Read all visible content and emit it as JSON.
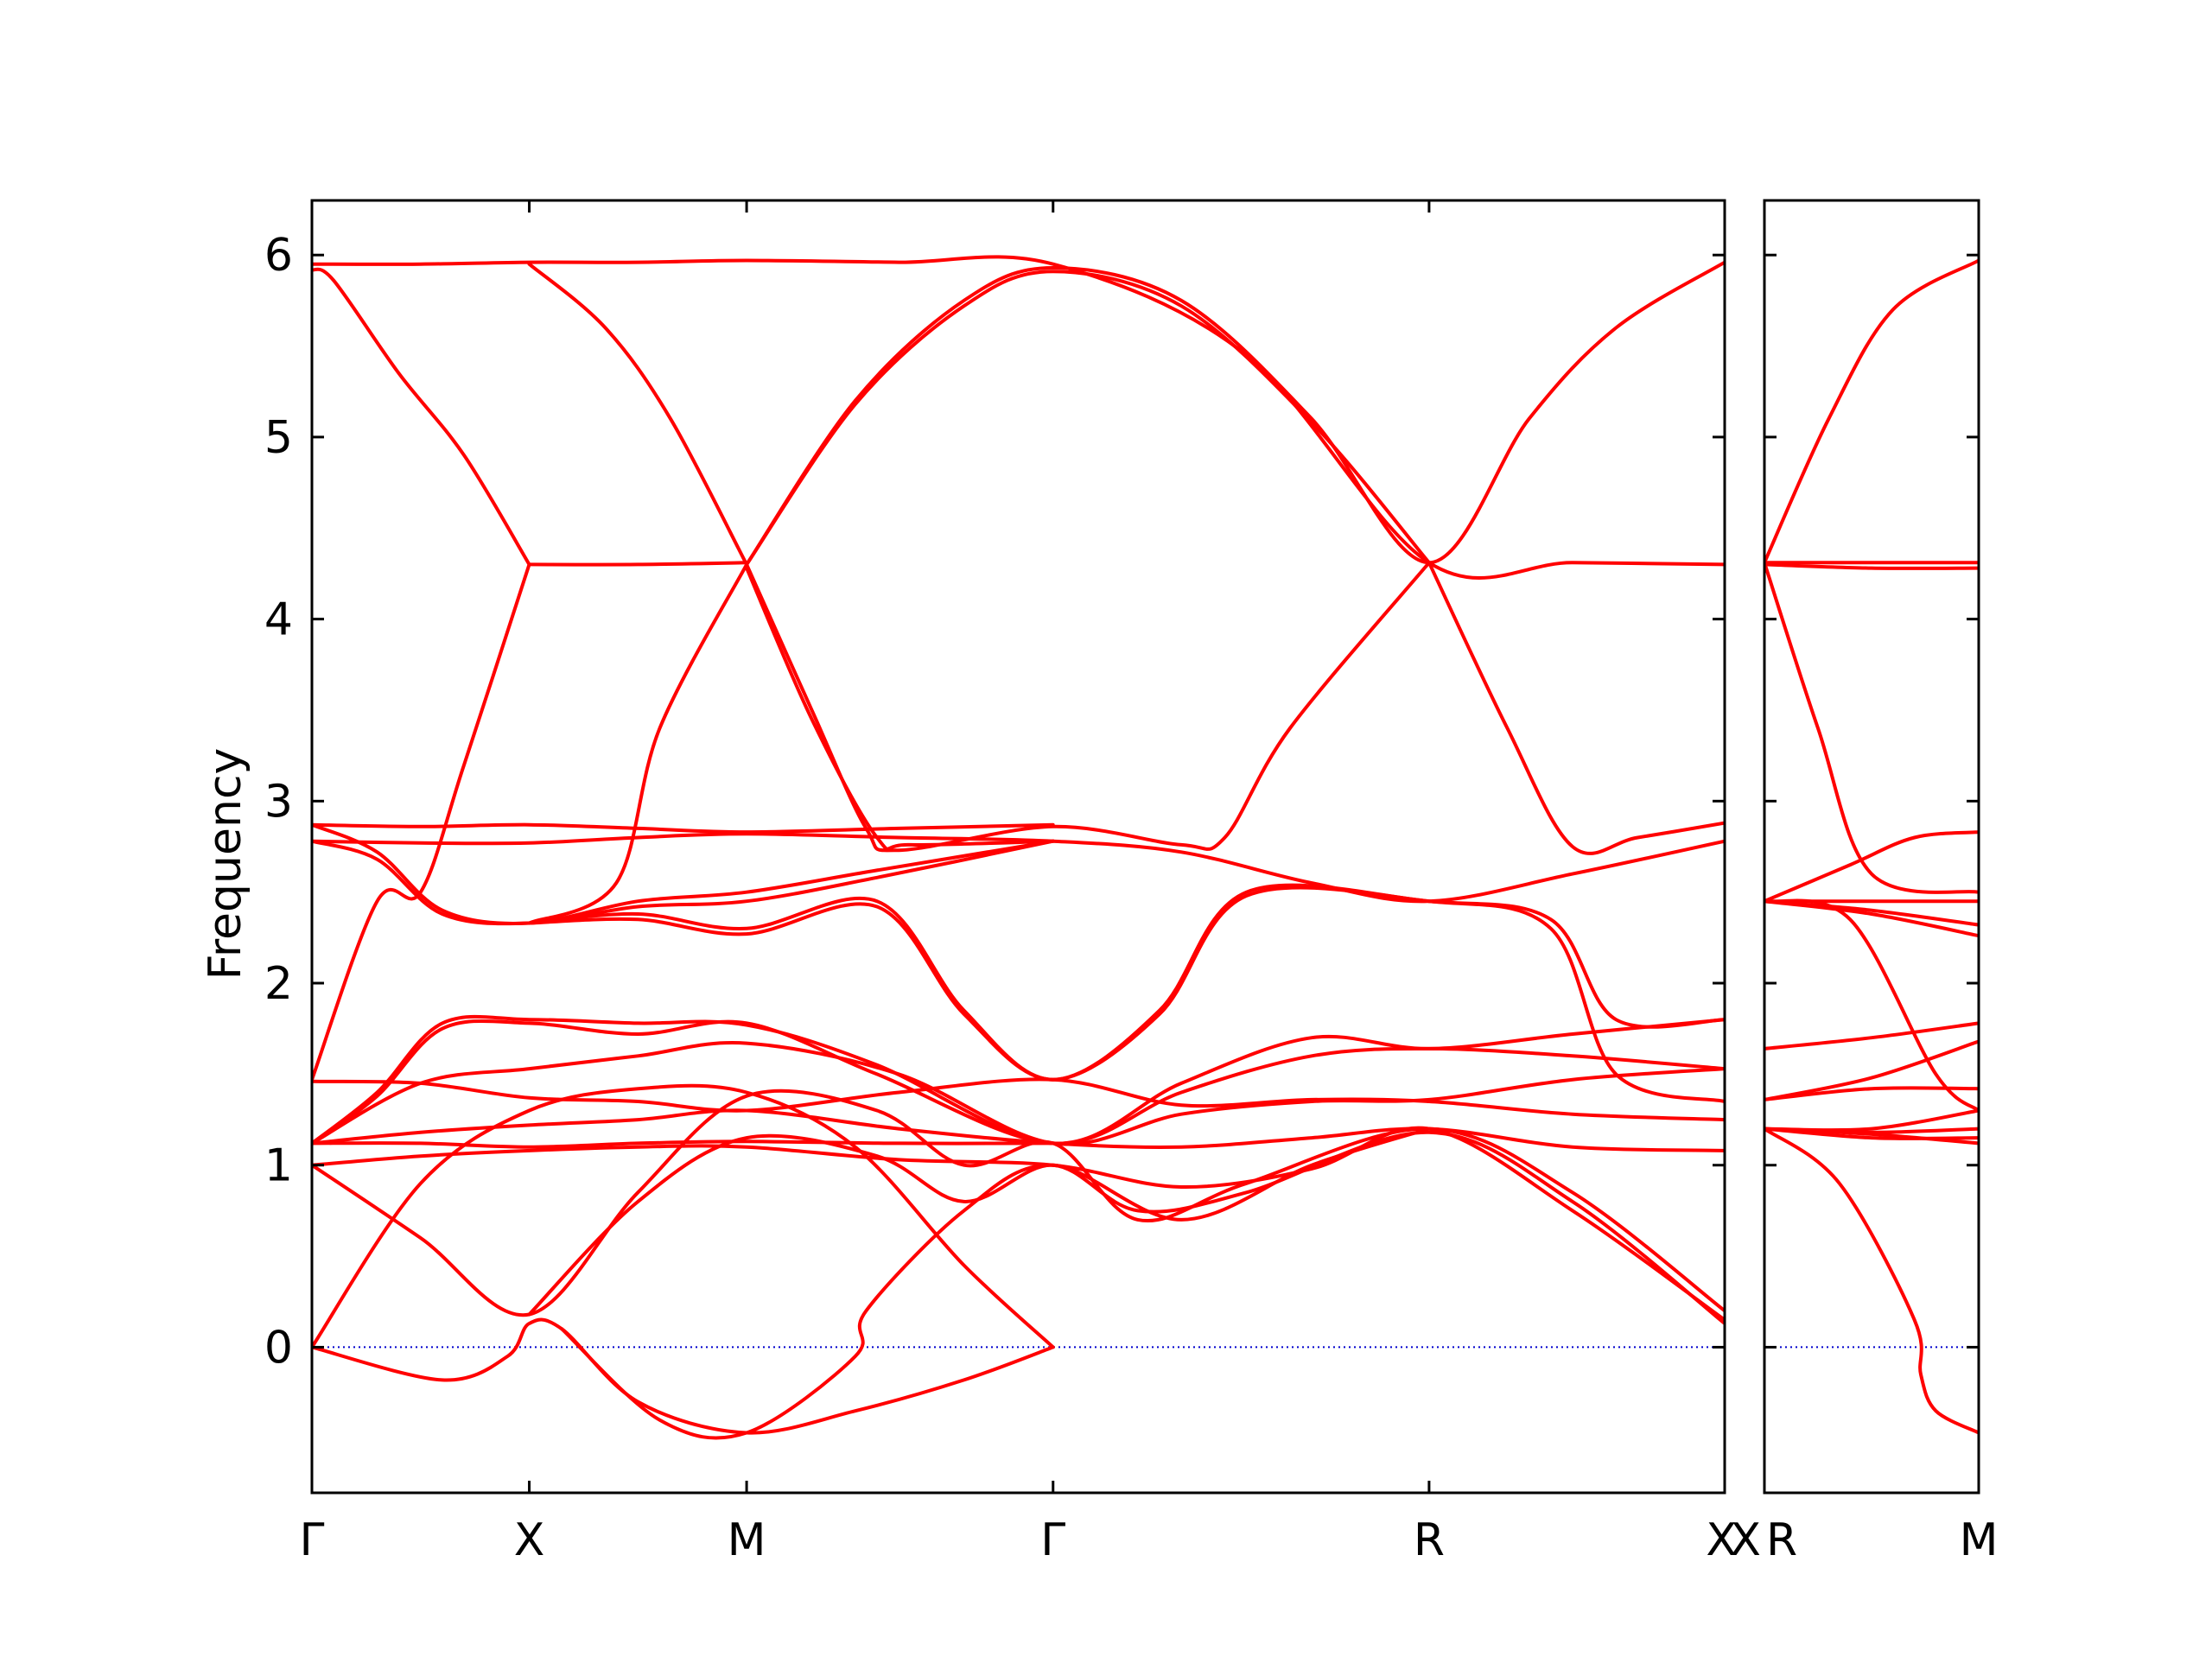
{
  "chart_data": {
    "type": "line",
    "ylabel": "Frequency",
    "ylim": [
      -0.8,
      6.3
    ],
    "yticks": [
      0,
      1,
      2,
      3,
      4,
      5,
      6
    ],
    "colors": {
      "bands": "#ff0000",
      "zero_line": "#0000cc",
      "frame": "#000000"
    },
    "grid": false,
    "legend": "none",
    "panels": [
      {
        "name": "main",
        "xlim": [
          0,
          6.5
        ],
        "kpoints": [
          {
            "label": "Γ",
            "x": 0
          },
          {
            "label": "X",
            "x": 1
          },
          {
            "label": "M",
            "x": 2
          },
          {
            "label": "Γ",
            "x": 3.41
          },
          {
            "label": "R",
            "x": 5.14
          },
          {
            "label": "X",
            "x": 6.5
          }
        ],
        "bands": [
          {
            "x": [
              0,
              0.5,
              1,
              1.5,
              2,
              2.7,
              3.41,
              4.3,
              5.14,
              5.8,
              6.5
            ],
            "y": [
              5.95,
              5.95,
              5.96,
              5.96,
              5.97,
              5.96,
              5.95,
              5.45,
              4.31,
              4.31,
              4.3
            ]
          },
          {
            "x": [
              0,
              0.1,
              0.4,
              0.7,
              1
            ],
            "y": [
              5.92,
              5.86,
              5.35,
              4.9,
              4.3
            ]
          },
          {
            "x": [
              1,
              1.35,
              1.65,
              2
            ],
            "y": [
              5.95,
              5.6,
              5.1,
              4.3
            ]
          },
          {
            "x": [
              1,
              1.5,
              2
            ],
            "y": [
              4.3,
              4.3,
              4.31
            ]
          },
          {
            "x": [
              2,
              2.5,
              3,
              3.41,
              4,
              4.6,
              5.14,
              5.6,
              6,
              6.5
            ],
            "y": [
              4.3,
              5.2,
              5.75,
              5.93,
              5.75,
              5.1,
              4.31,
              5.1,
              5.6,
              5.96
            ]
          },
          {
            "x": [
              2,
              2.5,
              3,
              3.41,
              4,
              4.6,
              5.14
            ],
            "y": [
              4.3,
              5.18,
              5.72,
              5.91,
              5.72,
              5.08,
              4.31
            ]
          },
          {
            "x": [
              0,
              0.3,
              0.5,
              0.7,
              1
            ],
            "y": [
              1.47,
              2.45,
              2.5,
              3.2,
              4.3
            ]
          },
          {
            "x": [
              1,
              1.4,
              1.6,
              2
            ],
            "y": [
              2.33,
              2.55,
              3.4,
              4.3
            ]
          },
          {
            "x": [
              2,
              2.3,
              2.55,
              2.7,
              3.41,
              4,
              4.2,
              4.5,
              5.14
            ],
            "y": [
              4.3,
              3.5,
              2.85,
              2.73,
              2.86,
              2.76,
              2.8,
              3.4,
              4.31
            ]
          },
          {
            "x": [
              2,
              2.3,
              2.6,
              2.75,
              3.41
            ],
            "y": [
              4.28,
              3.45,
              2.8,
              2.76,
              2.78
            ]
          },
          {
            "x": [
              5.14,
              5.5,
              5.8,
              6.1,
              6.5
            ],
            "y": [
              4.31,
              3.4,
              2.75,
              2.8,
              2.88
            ]
          },
          {
            "x": [
              0,
              0.5,
              1,
              1.5,
              2,
              2.7,
              3.41
            ],
            "y": [
              2.87,
              2.86,
              2.87,
              2.85,
              2.83,
              2.85,
              2.87
            ]
          },
          {
            "x": [
              0,
              0.5,
              1,
              1.5,
              2,
              2.7,
              3.41,
              4,
              4.6,
              5.14,
              5.8,
              6.5
            ],
            "y": [
              2.78,
              2.77,
              2.77,
              2.8,
              2.82,
              2.8,
              2.78,
              2.72,
              2.55,
              2.45,
              2.6,
              2.78
            ]
          },
          {
            "x": [
              0,
              0.3,
              0.6,
              1,
              1.5,
              2,
              2.6,
              3.41
            ],
            "y": [
              2.87,
              2.72,
              2.4,
              2.33,
              2.45,
              2.5,
              2.62,
              2.78
            ]
          },
          {
            "x": [
              0,
              0.3,
              0.6,
              1,
              1.5,
              2,
              2.6,
              3.41
            ],
            "y": [
              2.78,
              2.68,
              2.38,
              2.33,
              2.42,
              2.45,
              2.58,
              2.78
            ]
          },
          {
            "x": [
              1,
              1.5,
              2,
              2.6,
              3.0,
              3.41,
              3.9,
              4.3,
              5.14,
              5.7,
              6.0,
              6.5
            ],
            "y": [
              2.33,
              2.38,
              2.3,
              2.45,
              1.85,
              1.47,
              1.85,
              2.5,
              2.45,
              2.35,
              1.8,
              1.8
            ]
          },
          {
            "x": [
              1,
              1.5,
              2,
              2.6,
              3.0,
              3.41,
              3.9,
              4.3,
              5.14,
              5.7,
              6.0,
              6.5
            ],
            "y": [
              2.33,
              2.35,
              2.27,
              2.42,
              1.83,
              1.47,
              1.83,
              2.48,
              2.45,
              2.3,
              1.5,
              1.35
            ]
          },
          {
            "x": [
              0,
              0.3,
              0.6,
              1,
              1.5,
              2,
              2.6,
              3.41,
              4,
              4.6,
              5.14,
              5.8,
              6.5
            ],
            "y": [
              1.12,
              1.4,
              1.78,
              1.8,
              1.78,
              1.77,
              1.55,
              1.12,
              1.45,
              1.7,
              1.64,
              1.72,
              1.8
            ]
          },
          {
            "x": [
              0,
              0.3,
              0.6,
              1,
              1.5,
              2,
              2.6,
              3.41,
              4,
              4.6,
              5.14,
              5.8,
              6.5
            ],
            "y": [
              1.12,
              1.38,
              1.75,
              1.78,
              1.72,
              1.78,
              1.5,
              1.12,
              1.4,
              1.6,
              1.64,
              1.6,
              1.53
            ]
          },
          {
            "x": [
              0,
              0.5,
              1,
              1.5,
              2,
              2.7,
              3.41,
              4,
              4.6,
              5.14,
              5.8,
              6.5
            ],
            "y": [
              1.12,
              1.45,
              1.53,
              1.6,
              1.67,
              1.5,
              1.12,
              1.28,
              1.35,
              1.36,
              1.47,
              1.53
            ]
          },
          {
            "x": [
              0,
              0.5,
              1,
              1.5,
              2,
              2.7,
              3.41,
              4,
              4.6,
              5.14,
              5.8,
              6.5
            ],
            "y": [
              1.46,
              1.45,
              1.37,
              1.35,
              1.3,
              1.4,
              1.47,
              1.33,
              1.36,
              1.35,
              1.28,
              1.25
            ]
          },
          {
            "x": [
              0,
              0.5,
              1,
              1.5,
              2,
              2.7,
              3.41,
              4,
              4.6,
              5.14,
              5.8,
              6.5
            ],
            "y": [
              1.12,
              1.18,
              1.22,
              1.25,
              1.3,
              1.2,
              1.12,
              1.1,
              1.15,
              1.2,
              1.1,
              1.08
            ]
          },
          {
            "x": [
              0,
              0.5,
              1,
              1.5,
              2,
              2.7,
              3.41
            ],
            "y": [
              1.12,
              1.12,
              1.1,
              1.12,
              1.13,
              1.12,
              1.12
            ]
          },
          {
            "x": [
              0,
              0.5,
              1,
              1.5,
              2,
              2.7,
              3.41,
              4,
              4.6,
              5.14,
              5.8,
              6.5
            ],
            "y": [
              1.0,
              1.05,
              1.08,
              1.1,
              1.1,
              1.03,
              1.0,
              0.88,
              0.98,
              1.2,
              0.75,
              0.15
            ]
          },
          {
            "x": [
              0,
              0.5,
              1,
              1.5,
              2,
              2.6,
              3.0,
              3.41,
              3.8,
              4.3,
              5.14,
              5.8,
              6.5
            ],
            "y": [
              1.0,
              0.6,
              0.18,
              0.85,
              1.38,
              1.3,
              1.0,
              1.12,
              0.7,
              0.9,
              1.2,
              0.85,
              0.2
            ]
          },
          {
            "x": [
              1,
              1.5,
              2,
              2.6,
              3.0,
              3.41,
              3.8,
              4.3,
              5.14,
              5.8,
              6.5
            ],
            "y": [
              0.18,
              0.8,
              1.15,
              1.05,
              0.8,
              1.0,
              0.75,
              0.85,
              1.18,
              0.8,
              0.13
            ]
          },
          {
            "x": [
              0,
              0.5,
              1,
              1.5,
              2,
              2.5,
              3.0,
              3.41
            ],
            "y": [
              0,
              0.9,
              1.3,
              1.42,
              1.4,
              1.1,
              0.45,
              0
            ]
          },
          {
            "x": [
              0,
              0.6,
              0.9,
              1,
              1.15,
              1.5,
              2,
              2.5,
              3.0,
              3.41
            ],
            "y": [
              0,
              -0.18,
              -0.05,
              0.13,
              0.1,
              -0.3,
              -0.47,
              -0.35,
              -0.18,
              0
            ]
          },
          {
            "x": [
              1.15,
              1.6,
              2,
              2.5,
              2.55,
              3.0,
              3.41,
              4,
              4.6,
              5.14
            ],
            "y": [
              0.1,
              -0.4,
              -0.47,
              -0.05,
              0.2,
              0.75,
              1.0,
              0.7,
              1.0,
              1.2
            ]
          }
        ]
      },
      {
        "name": "inset",
        "xlim": [
          0,
          1
        ],
        "kpoints": [
          {
            "label": "X",
            "x": -0.0,
            "side": "left-edge"
          },
          {
            "label": "R",
            "x": 0
          },
          {
            "label": "M",
            "x": 1
          }
        ],
        "bands": [
          {
            "x": [
              0,
              0.3,
              0.6,
              1
            ],
            "y": [
              4.31,
              5.1,
              5.7,
              5.97
            ]
          },
          {
            "x": [
              0,
              0.5,
              1
            ],
            "y": [
              4.31,
              4.31,
              4.31
            ]
          },
          {
            "x": [
              0,
              0.5,
              1
            ],
            "y": [
              4.3,
              4.28,
              4.28
            ]
          },
          {
            "x": [
              0,
              0.25,
              0.5,
              1
            ],
            "y": [
              4.31,
              3.4,
              2.6,
              2.5
            ]
          },
          {
            "x": [
              0,
              0.4,
              0.7,
              1
            ],
            "y": [
              2.45,
              2.65,
              2.8,
              2.83
            ]
          },
          {
            "x": [
              0,
              0.5,
              1
            ],
            "y": [
              2.45,
              2.45,
              2.45
            ]
          },
          {
            "x": [
              0,
              0.5,
              1
            ],
            "y": [
              2.45,
              2.4,
              2.32
            ]
          },
          {
            "x": [
              0,
              0.5,
              1
            ],
            "y": [
              2.45,
              2.38,
              2.26
            ]
          },
          {
            "x": [
              0,
              0.4,
              0.8,
              1
            ],
            "y": [
              2.45,
              2.35,
              1.5,
              1.3
            ]
          },
          {
            "x": [
              0,
              0.5,
              1
            ],
            "y": [
              1.64,
              1.7,
              1.78
            ]
          },
          {
            "x": [
              0,
              0.5,
              1
            ],
            "y": [
              1.36,
              1.48,
              1.68
            ]
          },
          {
            "x": [
              0,
              0.5,
              1
            ],
            "y": [
              1.36,
              1.42,
              1.42
            ]
          },
          {
            "x": [
              0,
              0.5,
              1
            ],
            "y": [
              1.2,
              1.2,
              1.3
            ]
          },
          {
            "x": [
              0,
              0.5,
              1
            ],
            "y": [
              1.2,
              1.18,
              1.2
            ]
          },
          {
            "x": [
              0,
              0.5,
              1
            ],
            "y": [
              1.2,
              1.15,
              1.15
            ]
          },
          {
            "x": [
              0,
              0.5,
              1
            ],
            "y": [
              1.2,
              1.17,
              1.12
            ]
          },
          {
            "x": [
              0,
              0.35,
              0.7,
              0.73,
              0.8,
              1
            ],
            "y": [
              1.2,
              0.9,
              0.15,
              -0.15,
              -0.35,
              -0.47
            ]
          }
        ]
      }
    ]
  }
}
